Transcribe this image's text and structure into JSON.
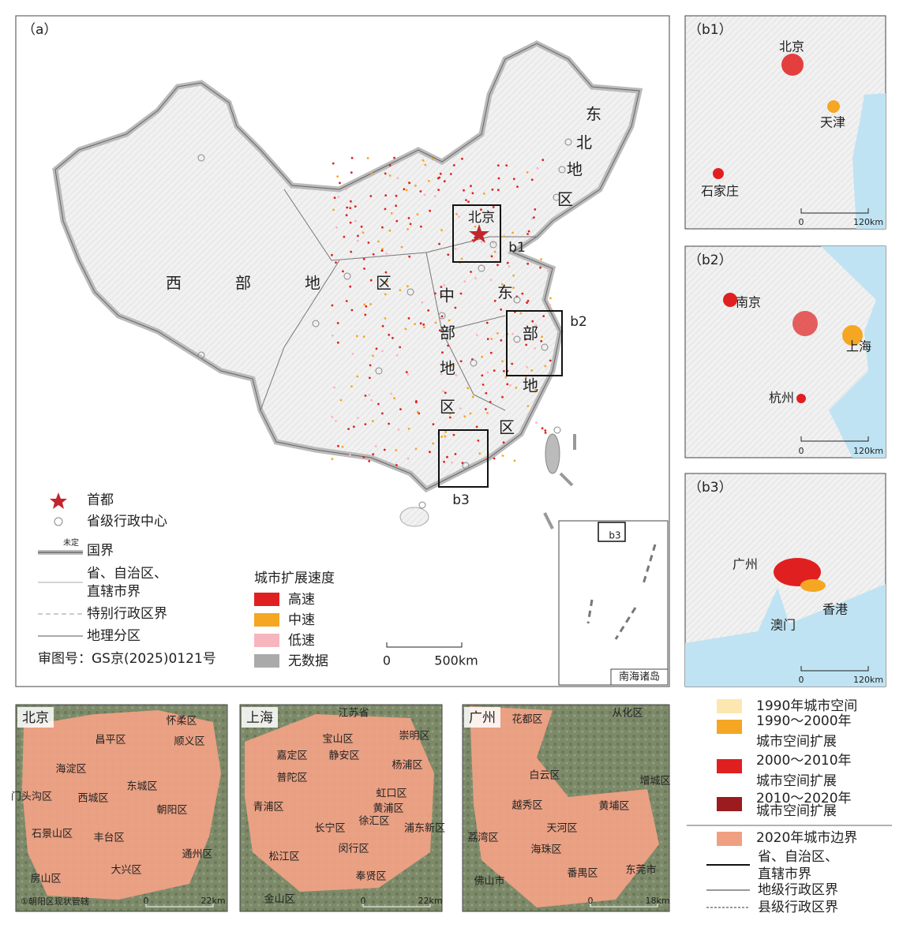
{
  "panel_a": {
    "label": "（a）",
    "capital_label": "北京",
    "region_labels": {
      "northeast": [
        "东",
        "北",
        "地",
        "区"
      ],
      "west": [
        "西",
        "部",
        "地",
        "区"
      ],
      "central": [
        "中",
        "部",
        "地",
        "区"
      ],
      "east": [
        "东",
        "部",
        "地",
        "区"
      ]
    },
    "box_labels": [
      "b1",
      "b2",
      "b3"
    ],
    "inset": {
      "title": "南海诸岛",
      "box_label": "b3"
    },
    "legend": {
      "capital": "首都",
      "provincial_center": "省级行政中心",
      "national_border": "国界",
      "undetermined": "未定",
      "provincial_border": [
        "省、自治区、",
        "直辖市界"
      ],
      "sar_border": "特别行政区界",
      "geographic_division": "地理分区"
    },
    "approval_number": "审图号：GS京(2025)0121号",
    "speed_legend": {
      "title": "城市扩展速度",
      "items": [
        "高速",
        "中速",
        "低速",
        "无数据"
      ]
    },
    "scale": [
      "0",
      "500km"
    ]
  },
  "panel_b1": {
    "label": "（b1）",
    "cities": [
      "北京",
      "天津",
      "石家庄"
    ],
    "scale": [
      "0",
      "120km"
    ]
  },
  "panel_b2": {
    "label": "（b2）",
    "cities": [
      "南京",
      "上海",
      "杭州"
    ],
    "scale": [
      "0",
      "120km"
    ]
  },
  "panel_b3": {
    "label": "（b3）",
    "cities": [
      "广州",
      "澳门",
      "香港"
    ],
    "scale": [
      "0",
      "120km"
    ]
  },
  "beijing": {
    "title": "北京",
    "districts": [
      "怀柔区",
      "昌平区",
      "顺义区",
      "海淀区",
      "门头沟区",
      "西城区",
      "东城区",
      "朝阳区",
      "石景山区",
      "丰台区",
      "通州区",
      "大兴区",
      "房山区"
    ],
    "note": "①朝阳区现状管辖",
    "scale": [
      "0",
      "22km"
    ]
  },
  "shanghai": {
    "title": "上海",
    "districts": [
      "江苏省",
      "宝山区",
      "崇明区",
      "嘉定区",
      "静安区",
      "杨浦区",
      "普陀区",
      "虹口区",
      "青浦区",
      "长宁区",
      "黄浦区",
      "浦东新区",
      "徐汇区",
      "松江区",
      "闵行区",
      "奉贤区",
      "金山区"
    ],
    "scale": [
      "0",
      "22km"
    ]
  },
  "guangzhou": {
    "title": "广州",
    "districts": [
      "花都区",
      "从化区",
      "增城区",
      "白云区",
      "越秀区",
      "黄埔区",
      "荔湾区",
      "天河区",
      "海珠区",
      "番禺区",
      "佛山市",
      "东莞市"
    ],
    "scale": [
      "0",
      "18km"
    ]
  },
  "bottom_legend": {
    "items": [
      [
        "1990年城市空间"
      ],
      [
        "1990～2000年",
        "城市空间扩展"
      ],
      [
        "2000～2010年",
        "城市空间扩展"
      ],
      [
        "2010～2020年",
        "城市空间扩展"
      ],
      [
        "2020年城市边界"
      ]
    ],
    "lines": [
      [
        "省、自治区、",
        "直辖市界"
      ],
      [
        "地级行政区界"
      ],
      [
        "县级行政区界"
      ]
    ]
  }
}
